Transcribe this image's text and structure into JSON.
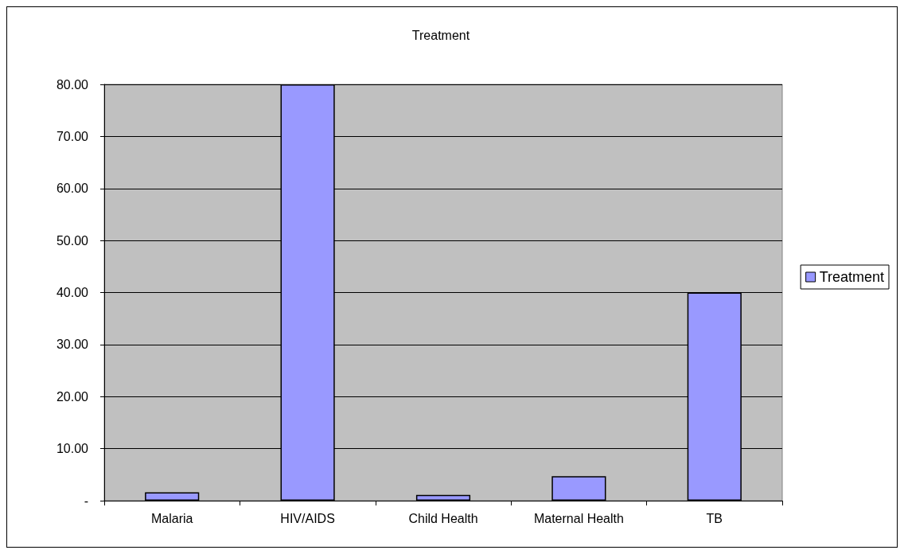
{
  "chart_data": {
    "type": "bar",
    "title": "Treatment",
    "categories": [
      "Malaria",
      "HIV/AIDS",
      "Child Health",
      "Maternal Health",
      "TB"
    ],
    "series": [
      {
        "name": "Treatment",
        "color": "#9999ff",
        "values": [
          1.6,
          80,
          1.1,
          4.7,
          40
        ]
      }
    ],
    "ylim": [
      0,
      80
    ],
    "yticks": [
      {
        "value": 0,
        "label": "-"
      },
      {
        "value": 10,
        "label": "10.00"
      },
      {
        "value": 20,
        "label": "20.00"
      },
      {
        "value": 30,
        "label": "30.00"
      },
      {
        "value": 40,
        "label": "40.00"
      },
      {
        "value": 50,
        "label": "50.00"
      },
      {
        "value": 60,
        "label": "60.00"
      },
      {
        "value": 70,
        "label": "70.00"
      },
      {
        "value": 80,
        "label": "80.00"
      }
    ],
    "grid": "y",
    "legend": "right"
  }
}
